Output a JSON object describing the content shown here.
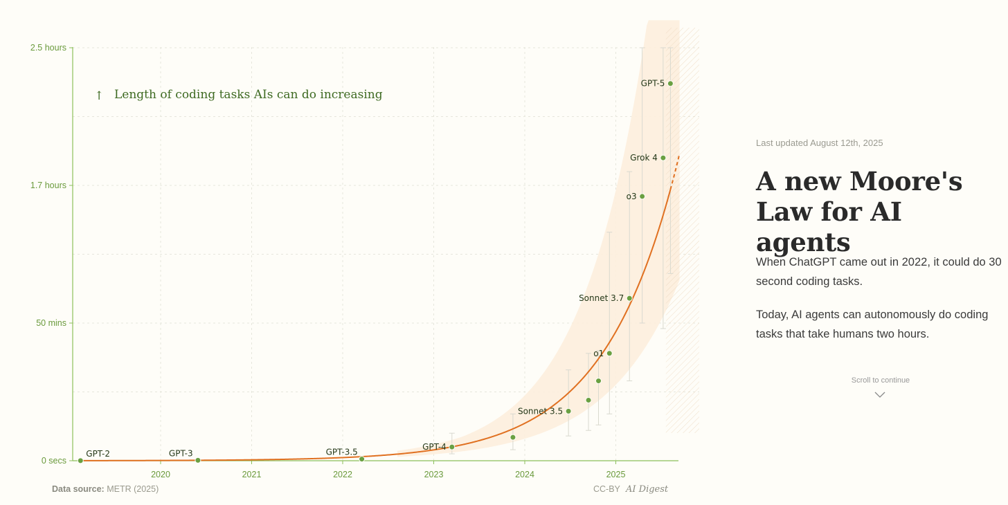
{
  "chart_data": {
    "type": "scatter",
    "annotation": "Length of coding tasks AIs can do increasing",
    "annotation_icon": "up-arrow-icon",
    "y_axis": {
      "ticks": [
        {
          "label": "0 secs",
          "minutes": 0
        },
        {
          "label": "50 mins",
          "minutes": 50
        },
        {
          "label": "1.7 hours",
          "minutes": 100
        },
        {
          "label": "2.5 hours",
          "minutes": 150
        }
      ],
      "ylim_minutes": [
        0,
        150
      ]
    },
    "x_axis": {
      "ticks": [
        "2020",
        "2021",
        "2022",
        "2023",
        "2024",
        "2025"
      ],
      "xlim_year": [
        2018.9,
        2025.7
      ]
    },
    "grid": "dashed",
    "points": [
      {
        "label": "GPT-2",
        "year": 2019.12,
        "minutes": 0.04,
        "err": [
          0,
          0
        ]
      },
      {
        "label": "GPT-3",
        "year": 2020.41,
        "minutes": 0.15,
        "err": [
          0,
          0
        ]
      },
      {
        "label": "GPT-3.5",
        "year": 2022.21,
        "minutes": 0.6,
        "err": [
          0,
          0
        ]
      },
      {
        "label": "GPT-4",
        "year": 2023.2,
        "minutes": 5,
        "err": [
          2.5,
          10
        ]
      },
      {
        "label": "",
        "year": 2023.87,
        "minutes": 8.5,
        "err": [
          4,
          17
        ]
      },
      {
        "label": "Sonnet 3.5",
        "year": 2024.48,
        "minutes": 18,
        "err": [
          9,
          33
        ]
      },
      {
        "label": "",
        "year": 2024.7,
        "minutes": 22,
        "err": [
          11,
          39
        ]
      },
      {
        "label": "",
        "year": 2024.81,
        "minutes": 29,
        "err": [
          13,
          40
        ]
      },
      {
        "label": "o1",
        "year": 2024.93,
        "minutes": 39,
        "err": [
          17,
          83
        ]
      },
      {
        "label": "Sonnet 3.7",
        "year": 2025.15,
        "minutes": 59,
        "err": [
          29,
          105
        ]
      },
      {
        "label": "o3",
        "year": 2025.29,
        "minutes": 96,
        "err": [
          50,
          150
        ]
      },
      {
        "label": "Grok 4",
        "year": 2025.52,
        "minutes": 110,
        "err": [
          48,
          150
        ]
      },
      {
        "label": "GPT-5",
        "year": 2025.6,
        "minutes": 137,
        "err": [
          68,
          150
        ]
      }
    ],
    "trend": {
      "color": "#e07020",
      "band_color": "#fdeedd"
    },
    "colors": {
      "point": "#6aa042",
      "axis": "#8cbf5a",
      "label": "#243818"
    }
  },
  "source_label": "Data source:",
  "source_value": "METR (2025)",
  "license": "CC-BY",
  "brand": "AI Digest",
  "side": {
    "updated": "Last updated August 12th, 2025",
    "headline_line1": "A new Moore's",
    "headline_line2": "Law for AI agents",
    "para1": "When ChatGPT came out in 2022, it could do 30 second coding tasks.",
    "para2": "Today, AI agents can autonomously do coding tasks that take humans two hours.",
    "scroll": "Scroll to continue",
    "scroll_icon": "chevron-down-icon"
  }
}
